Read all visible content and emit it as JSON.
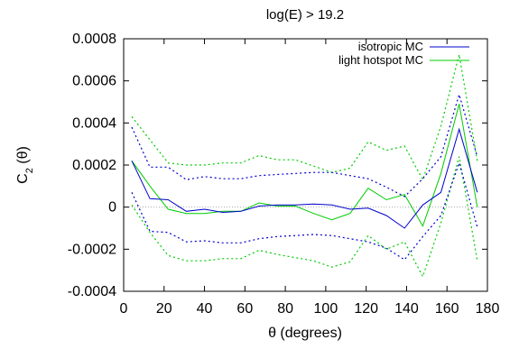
{
  "chart_data": {
    "type": "line",
    "title": "log(E) > 19.2",
    "xlabel": "θ (degrees)",
    "ylabel": "C₂ (θ)",
    "xlim": [
      0,
      180
    ],
    "ylim": [
      -0.0004,
      0.0008
    ],
    "xticks": [
      0,
      20,
      40,
      60,
      80,
      100,
      120,
      140,
      160,
      180
    ],
    "yticks": [
      -0.0004,
      -0.0002,
      0,
      0.0002,
      0.0004,
      0.0006,
      0.0008
    ],
    "xtick_labels": [
      "0",
      "20",
      "40",
      "60",
      "80",
      "100",
      "120",
      "140",
      "160",
      "180"
    ],
    "ytick_labels": [
      "-0.0004",
      "-0.0002",
      "0",
      "0.0002",
      "0.0004",
      "0.0006",
      "0.0008"
    ],
    "ylabel_main": "C",
    "ylabel_sub": "2",
    "ylabel_rest": " (θ)",
    "grid": false,
    "zero_line": true,
    "legend_position": "top-right",
    "x": [
      4,
      13,
      22,
      31,
      40,
      49,
      58,
      67,
      76,
      85,
      94,
      103,
      112,
      121,
      130,
      139,
      148,
      157,
      166,
      175
    ],
    "series": [
      {
        "name": "isotropic MC",
        "color": "#0000cc",
        "values": [
          0.00022,
          4e-05,
          3.5e-05,
          -2e-05,
          -1e-05,
          -2.5e-05,
          -2e-05,
          5e-06,
          1e-05,
          1e-05,
          1.5e-05,
          1e-05,
          -1e-05,
          -5e-06,
          -4e-05,
          -0.0001,
          1e-05,
          7e-05,
          0.00037,
          7e-05
        ],
        "upper": [
          0.00038,
          0.00019,
          0.00019,
          0.00013,
          0.000145,
          0.000135,
          0.000135,
          0.00015,
          0.000155,
          0.00016,
          0.000165,
          0.000165,
          0.00015,
          0.000135,
          9.5e-05,
          5e-05,
          0.000135,
          0.00024,
          0.000535,
          0.00024
        ],
        "lower": [
          7e-05,
          -0.000115,
          -0.00012,
          -0.000165,
          -0.00016,
          -0.00017,
          -0.00017,
          -0.00015,
          -0.00014,
          -0.000135,
          -0.00013,
          -0.000135,
          -0.00015,
          -0.000165,
          -0.000195,
          -0.00025,
          -0.00014,
          -4e-05,
          0.00021,
          -9.5e-05
        ]
      },
      {
        "name": "light hotspot MC",
        "color": "#00cc00",
        "values": [
          0.00022,
          0.0001,
          -1e-05,
          -3e-05,
          -3e-05,
          -2e-05,
          -2e-05,
          2e-05,
          5e-06,
          5e-06,
          -3e-05,
          -6e-05,
          -3e-05,
          9e-05,
          3.5e-05,
          6e-05,
          -9e-05,
          0.00016,
          0.00049,
          0.0
        ]
      }
    ],
    "green_upper": [
      0.00043,
      0.00032,
      0.00021,
      0.0002,
      0.0002,
      0.00021,
      0.00021,
      0.000245,
      0.000225,
      0.000225,
      0.000195,
      0.000165,
      0.000185,
      0.00031,
      0.00027,
      0.00029,
      0.00013,
      0.000385,
      0.000725,
      0.00022
    ],
    "green_lower": [
      1e-05,
      -0.00012,
      -0.00023,
      -0.000255,
      -0.000255,
      -0.000245,
      -0.000245,
      -0.000205,
      -0.000225,
      -0.00024,
      -0.000255,
      -0.000285,
      -0.00026,
      -0.000135,
      -0.0002,
      -0.000165,
      -0.00033,
      -7.5e-05,
      0.00024,
      -0.000255
    ]
  }
}
